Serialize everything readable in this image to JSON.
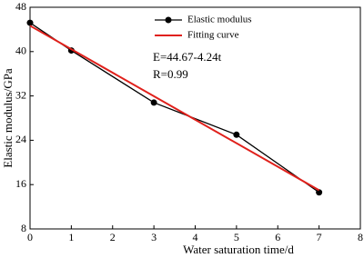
{
  "chart_data": {
    "type": "line",
    "x_label": "Water saturation time/d",
    "y_label": "Elastic modulus/GPa",
    "annotations": [
      "E=44.67-4.24t",
      "R=0.99"
    ],
    "series": [
      {
        "name": "Elastic modulus",
        "color": "#000000",
        "markers": true,
        "x": [
          0,
          1,
          3,
          5,
          7
        ],
        "values": [
          45.2,
          40.2,
          30.8,
          25.0,
          14.6
        ]
      },
      {
        "name": "Fitting curve",
        "color": "#e0201b",
        "markers": false,
        "x": [
          0,
          7
        ],
        "values": [
          44.67,
          14.99
        ]
      }
    ],
    "xlim": [
      0,
      8
    ],
    "xticks": [
      0,
      1,
      2,
      3,
      4,
      5,
      6,
      7,
      8
    ],
    "ylim": [
      8,
      48
    ],
    "yticks": [
      8,
      16,
      24,
      32,
      40,
      48
    ],
    "grid": false
  }
}
